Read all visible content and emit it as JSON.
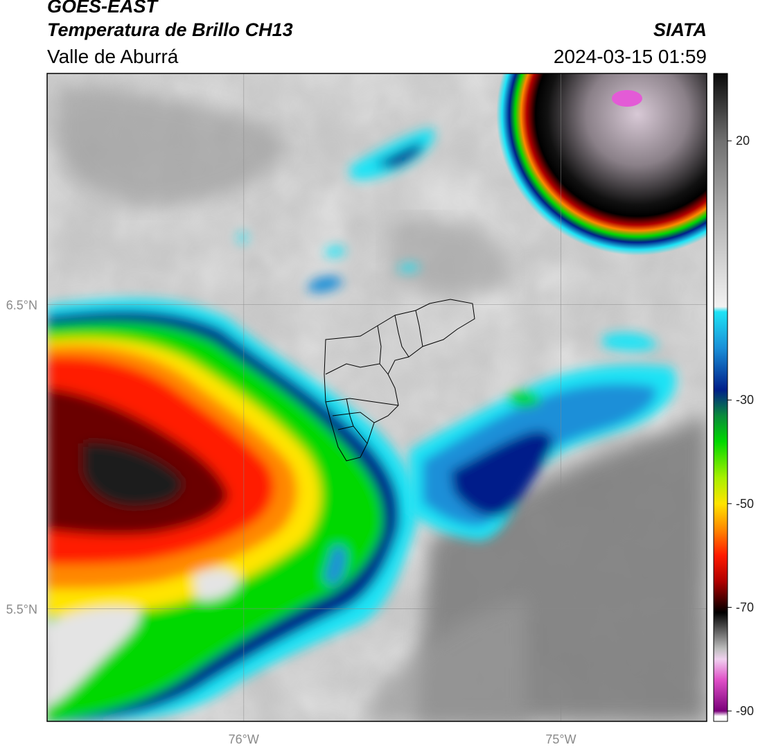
{
  "header": {
    "satellite": "GOES-EAST",
    "product": "Temperatura de Brillo CH13",
    "region": "Valle de Aburrá",
    "agency": "SIATA",
    "datetime": "2024-03-15 01:59"
  },
  "map": {
    "lon_range": [
      -76.62,
      -74.54
    ],
    "lat_range": [
      5.13,
      7.26
    ],
    "lon_ticks": [
      {
        "value": -76,
        "label": "76°W"
      },
      {
        "value": -75,
        "label": "75°W"
      }
    ],
    "lat_ticks": [
      {
        "value": 6.5,
        "label": "6.5°N"
      },
      {
        "value": 5.5,
        "label": "5.5°N"
      }
    ],
    "grid": true,
    "colors": {
      "gray_ramp": [
        "#5e5e5e",
        "#7a7a7a",
        "#959595",
        "#b0b0b0",
        "#c9c9c9",
        "#e4e4e4"
      ],
      "cloud_cyan": "#19d6f0",
      "cloud_blue": "#1c6fc7",
      "cloud_navy": "#06238f",
      "cloud_green": "#0ee11a",
      "cloud_yellow": "#e5f50c",
      "cloud_orange": "#ff8c00",
      "cloud_red": "#e81010",
      "cloud_darkred": "#6a0000",
      "cloud_black": "#1b1b1b",
      "cloud_pink": "#e35bd6"
    }
  },
  "colorbar": {
    "vmin": -92,
    "vmax": 33,
    "ticks": [
      {
        "value": 20,
        "label": "20"
      },
      {
        "value": -30,
        "label": "-30"
      },
      {
        "value": -50,
        "label": "-50"
      },
      {
        "value": -70,
        "label": "-70"
      },
      {
        "value": -90,
        "label": "-90"
      }
    ],
    "stops": [
      {
        "v": 33,
        "c": "#0a0a0a"
      },
      {
        "v": 20,
        "c": "#707070"
      },
      {
        "v": 5,
        "c": "#b4b4b4"
      },
      {
        "v": -12,
        "c": "#f2f2f2"
      },
      {
        "v": -13,
        "c": "#1ee3f5"
      },
      {
        "v": -20,
        "c": "#1a8fd8"
      },
      {
        "v": -28,
        "c": "#001f8a"
      },
      {
        "v": -33,
        "c": "#0a8a3c"
      },
      {
        "v": -38,
        "c": "#00d800"
      },
      {
        "v": -45,
        "c": "#a8f000"
      },
      {
        "v": -50,
        "c": "#ffe400"
      },
      {
        "v": -55,
        "c": "#ff8800"
      },
      {
        "v": -60,
        "c": "#ff1a00"
      },
      {
        "v": -65,
        "c": "#b00000"
      },
      {
        "v": -69,
        "c": "#3a0000"
      },
      {
        "v": -71,
        "c": "#000000"
      },
      {
        "v": -78,
        "c": "#bdbdbd"
      },
      {
        "v": -80,
        "c": "#f0d0ef"
      },
      {
        "v": -84,
        "c": "#e050c8"
      },
      {
        "v": -90,
        "c": "#7a007a"
      },
      {
        "v": -91,
        "c": "#ffffff"
      }
    ]
  }
}
